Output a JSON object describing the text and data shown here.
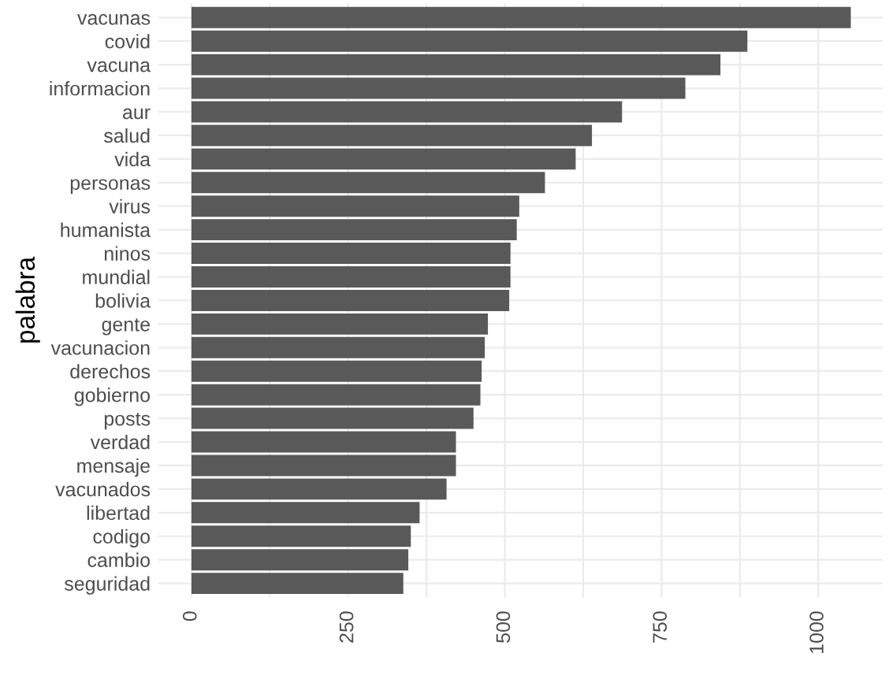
{
  "chart_data": {
    "type": "bar",
    "orientation": "horizontal",
    "ylabel": "palabra",
    "categories": [
      "vacunas",
      "covid",
      "vacuna",
      "informacion",
      "aur",
      "salud",
      "vida",
      "personas",
      "virus",
      "humanista",
      "ninos",
      "mundial",
      "bolivia",
      "gente",
      "vacunacion",
      "derechos",
      "gobierno",
      "posts",
      "verdad",
      "mensaje",
      "vacunados",
      "libertad",
      "codigo",
      "cambio",
      "seguridad"
    ],
    "values": [
      1052,
      887,
      844,
      788,
      687,
      639,
      613,
      564,
      523,
      519,
      509,
      509,
      507,
      473,
      468,
      463,
      461,
      450,
      422,
      422,
      407,
      364,
      350,
      346,
      338
    ],
    "color": "#595959",
    "xlim": [
      -53,
      1103
    ],
    "xticks": [
      0,
      {
        "value": 125,
        "label": null
      },
      250,
      {
        "value": 375,
        "label": null
      },
      500,
      {
        "value": 625,
        "label": null
      },
      750,
      {
        "value": 875,
        "label": null
      },
      1000
    ],
    "grid": true
  }
}
